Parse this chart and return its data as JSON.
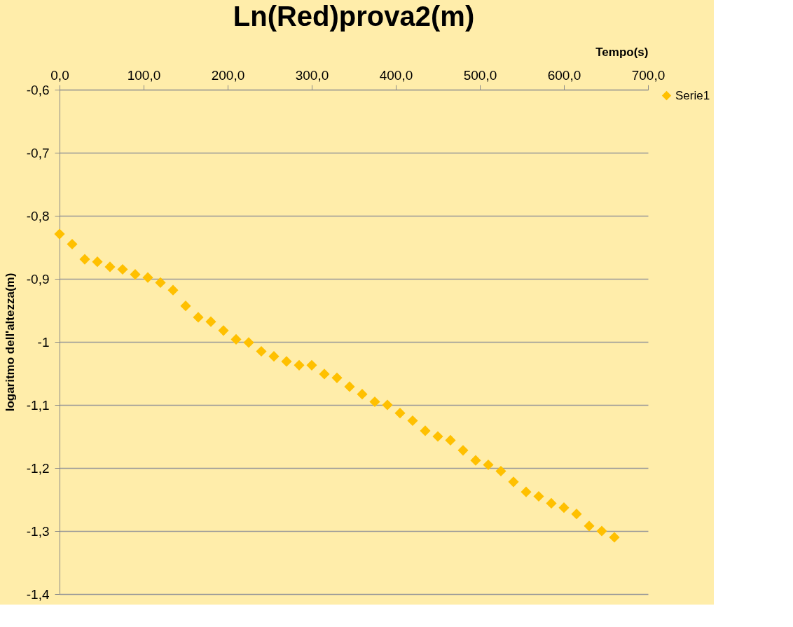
{
  "chart_data": {
    "type": "scatter",
    "title": "Ln(Red)prova2(m)",
    "xlabel": "Tempo(s)",
    "ylabel": "logaritmo dell'altezza(m)",
    "x": [
      0,
      15,
      30,
      45,
      60,
      75,
      90,
      105,
      120,
      135,
      150,
      165,
      180,
      195,
      210,
      225,
      240,
      255,
      270,
      285,
      300,
      315,
      330,
      345,
      360,
      375,
      390,
      405,
      420,
      435,
      450,
      465,
      480,
      495,
      510,
      525,
      540,
      555,
      570,
      585,
      600,
      615,
      630,
      645,
      660
    ],
    "series": [
      {
        "name": "Serie1",
        "color": "#ffc000",
        "values": [
          -0.829,
          -0.845,
          -0.869,
          -0.873,
          -0.881,
          -0.885,
          -0.893,
          -0.898,
          -0.906,
          -0.918,
          -0.943,
          -0.961,
          -0.968,
          -0.982,
          -0.996,
          -1.001,
          -1.015,
          -1.023,
          -1.031,
          -1.037,
          -1.037,
          -1.051,
          -1.057,
          -1.071,
          -1.083,
          -1.095,
          -1.1,
          -1.113,
          -1.125,
          -1.141,
          -1.15,
          -1.156,
          -1.172,
          -1.188,
          -1.195,
          -1.205,
          -1.222,
          -1.238,
          -1.245,
          -1.256,
          -1.263,
          -1.273,
          -1.292,
          -1.3,
          -1.31
        ]
      }
    ],
    "xlim": [
      0,
      700
    ],
    "xticks": [
      {
        "value": 0,
        "label": "0,0"
      },
      {
        "value": 100,
        "label": "100,0"
      },
      {
        "value": 200,
        "label": "200,0"
      },
      {
        "value": 300,
        "label": "300,0"
      },
      {
        "value": 400,
        "label": "400,0"
      },
      {
        "value": 500,
        "label": "500,0"
      },
      {
        "value": 600,
        "label": "600,0"
      },
      {
        "value": 700,
        "label": "700,0"
      }
    ],
    "ylim": [
      -1.4,
      -0.6
    ],
    "yticks": [
      {
        "value": -0.6,
        "label": "-0,6"
      },
      {
        "value": -0.7,
        "label": "-0,7"
      },
      {
        "value": -0.8,
        "label": "-0,8"
      },
      {
        "value": -0.9,
        "label": "-0,9"
      },
      {
        "value": -1,
        "label": "-1"
      },
      {
        "value": -1.1,
        "label": "-1,1"
      },
      {
        "value": -1.2,
        "label": "-1,2"
      },
      {
        "value": -1.3,
        "label": "-1,3"
      },
      {
        "value": -1.4,
        "label": "-1,4"
      }
    ],
    "grid": "y",
    "legend": "right",
    "marker": "diamond"
  }
}
